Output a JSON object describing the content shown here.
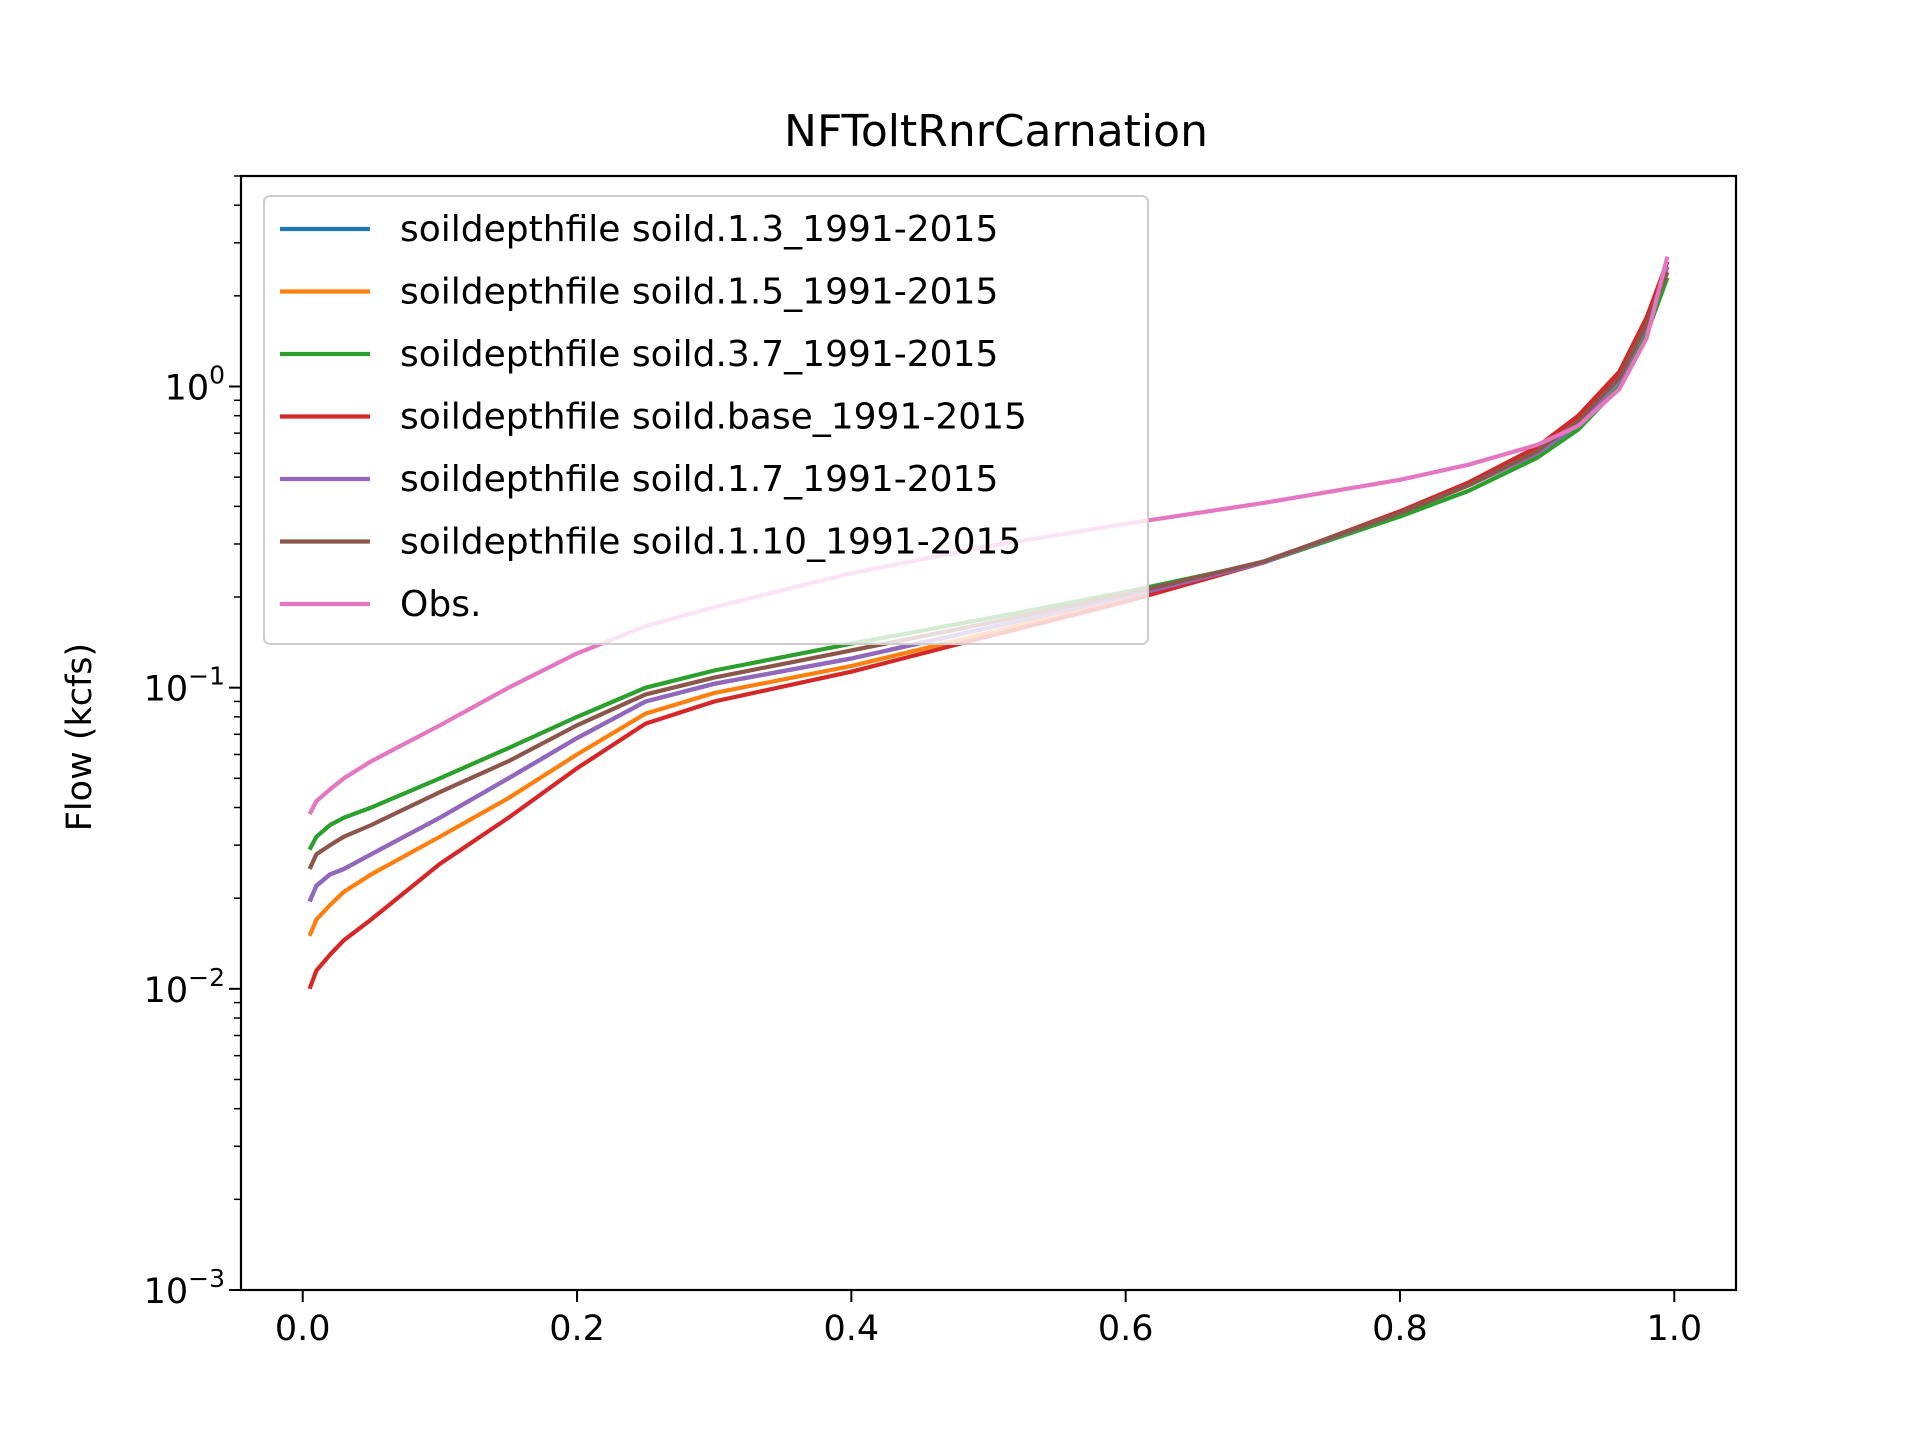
{
  "chart_data": {
    "type": "line",
    "title": "NFToltRnrCarnation",
    "xlabel": "",
    "ylabel": "Flow (kcfs)",
    "yscale": "log",
    "xlim": [
      -0.045,
      1.045
    ],
    "ylim": [
      0.001,
      5.0
    ],
    "xticks": [
      {
        "value": 0.0,
        "label": "0.0"
      },
      {
        "value": 0.2,
        "label": "0.2"
      },
      {
        "value": 0.4,
        "label": "0.4"
      },
      {
        "value": 0.6,
        "label": "0.6"
      },
      {
        "value": 0.8,
        "label": "0.8"
      },
      {
        "value": 1.0,
        "label": "1.0"
      }
    ],
    "yticks": [
      {
        "value": 0.001,
        "base": "10",
        "exp": "−3"
      },
      {
        "value": 0.01,
        "base": "10",
        "exp": "−2"
      },
      {
        "value": 0.1,
        "base": "10",
        "exp": "−1"
      },
      {
        "value": 1.0,
        "base": "10",
        "exp": "0"
      }
    ],
    "grid": false,
    "legend_position": "upper-left",
    "x": [
      0.005,
      0.01,
      0.02,
      0.03,
      0.05,
      0.1,
      0.15,
      0.2,
      0.25,
      0.3,
      0.4,
      0.5,
      0.6,
      0.7,
      0.8,
      0.85,
      0.9,
      0.93,
      0.96,
      0.98,
      0.995
    ],
    "series": [
      {
        "name": "soildepthfile soild.1.3_1991-2015",
        "color": "#1f77b4",
        "values": [
          0.0195,
          0.022,
          0.024,
          0.025,
          0.028,
          0.037,
          0.05,
          0.068,
          0.09,
          0.103,
          0.125,
          0.158,
          0.2,
          0.26,
          0.38,
          0.47,
          0.6,
          0.75,
          1.05,
          1.6,
          2.5
        ]
      },
      {
        "name": "soildepthfile soild.1.5_1991-2015",
        "color": "#ff7f0e",
        "values": [
          0.015,
          0.017,
          0.019,
          0.021,
          0.024,
          0.032,
          0.043,
          0.06,
          0.082,
          0.096,
          0.118,
          0.152,
          0.196,
          0.26,
          0.38,
          0.47,
          0.6,
          0.75,
          1.05,
          1.6,
          2.5
        ]
      },
      {
        "name": "soildepthfile soild.3.7_1991-2015",
        "color": "#2ca02c",
        "values": [
          0.029,
          0.032,
          0.035,
          0.037,
          0.04,
          0.05,
          0.063,
          0.08,
          0.1,
          0.114,
          0.14,
          0.17,
          0.208,
          0.26,
          0.37,
          0.45,
          0.58,
          0.72,
          1.0,
          1.5,
          2.3
        ]
      },
      {
        "name": "soildepthfile soild.base_1991-2015",
        "color": "#d62728",
        "values": [
          0.01,
          0.0115,
          0.013,
          0.0145,
          0.017,
          0.026,
          0.037,
          0.054,
          0.076,
          0.09,
          0.113,
          0.148,
          0.193,
          0.26,
          0.385,
          0.48,
          0.63,
          0.8,
          1.12,
          1.7,
          2.6
        ]
      },
      {
        "name": "soildepthfile soild.1.7_1991-2015",
        "color": "#9467bd",
        "values": [
          0.0195,
          0.022,
          0.024,
          0.025,
          0.028,
          0.037,
          0.05,
          0.068,
          0.09,
          0.103,
          0.125,
          0.158,
          0.2,
          0.26,
          0.38,
          0.47,
          0.6,
          0.75,
          1.05,
          1.6,
          2.5
        ]
      },
      {
        "name": "soildepthfile soild.1.10_1991-2015",
        "color": "#8c564b",
        "values": [
          0.025,
          0.028,
          0.03,
          0.032,
          0.035,
          0.045,
          0.057,
          0.075,
          0.095,
          0.108,
          0.133,
          0.164,
          0.204,
          0.262,
          0.38,
          0.47,
          0.61,
          0.77,
          1.07,
          1.62,
          2.4
        ]
      },
      {
        "name": "Obs.",
        "color": "#e377c2",
        "values": [
          0.038,
          0.042,
          0.046,
          0.05,
          0.057,
          0.075,
          0.1,
          0.13,
          0.16,
          0.185,
          0.24,
          0.295,
          0.35,
          0.41,
          0.49,
          0.55,
          0.64,
          0.74,
          0.98,
          1.45,
          2.7
        ]
      }
    ]
  }
}
